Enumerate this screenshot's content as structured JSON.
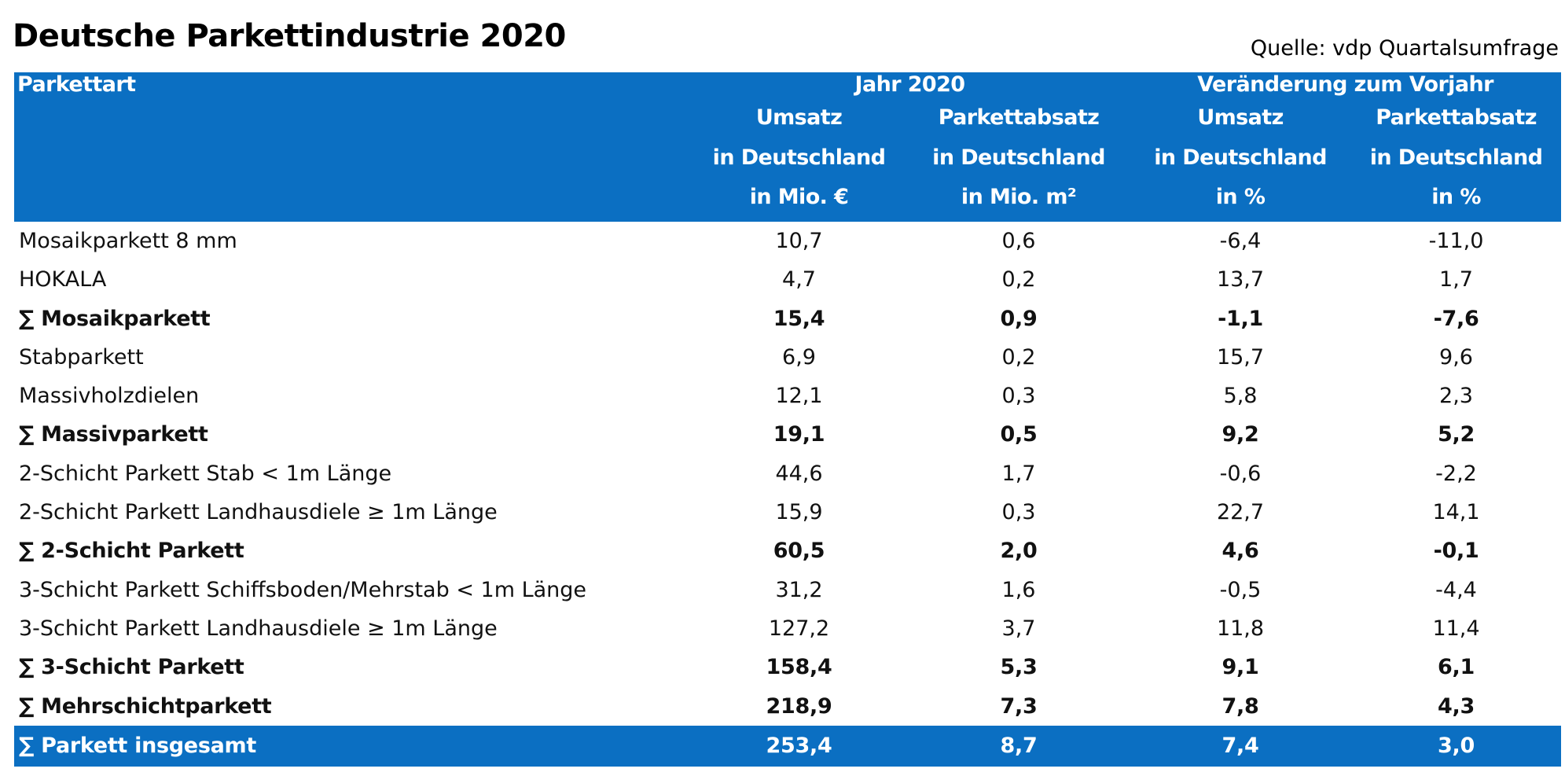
{
  "title": "Deutsche Parkettindustrie 2020",
  "source": "Quelle: vdp Quartalsumfrage",
  "colors": {
    "header_bg": "#0b6fc2",
    "header_text": "#ffffff",
    "body_text": "#111111"
  },
  "header": {
    "col0": "Parkettart",
    "group1": "Jahr 2020",
    "group2": "Veränderung zum Vorjahr",
    "columns": [
      {
        "line1": "Umsatz",
        "line2": "in Deutschland",
        "line3": "in Mio. €"
      },
      {
        "line1": "Parkettabsatz",
        "line2": "in Deutschland",
        "line3": "in Mio. m²"
      },
      {
        "line1": "Umsatz",
        "line2": "in Deutschland",
        "line3": "in %"
      },
      {
        "line1": "Parkettabsatz",
        "line2": "in Deutschland",
        "line3": "in %"
      }
    ]
  },
  "rows": [
    {
      "type": "item",
      "label": "Mosaikparkett 8 mm",
      "umsatz": "10,7",
      "absatz": "0,6",
      "umsatz_pct": "-6,4",
      "absatz_pct": "-11,0"
    },
    {
      "type": "item",
      "label": "HOKALA",
      "umsatz": "4,7",
      "absatz": "0,2",
      "umsatz_pct": "13,7",
      "absatz_pct": "1,7"
    },
    {
      "type": "subtotal",
      "label": "∑ Mosaikparkett",
      "umsatz": "15,4",
      "absatz": "0,9",
      "umsatz_pct": "-1,1",
      "absatz_pct": "-7,6"
    },
    {
      "type": "item",
      "label": "Stabparkett",
      "umsatz": "6,9",
      "absatz": "0,2",
      "umsatz_pct": "15,7",
      "absatz_pct": "9,6"
    },
    {
      "type": "item",
      "label": "Massivholzdielen",
      "umsatz": "12,1",
      "absatz": "0,3",
      "umsatz_pct": "5,8",
      "absatz_pct": "2,3"
    },
    {
      "type": "subtotal",
      "label": "∑ Massivparkett",
      "umsatz": "19,1",
      "absatz": "0,5",
      "umsatz_pct": "9,2",
      "absatz_pct": "5,2"
    },
    {
      "type": "item",
      "label": "2-Schicht Parkett  Stab < 1m Länge",
      "umsatz": "44,6",
      "absatz": "1,7",
      "umsatz_pct": "-0,6",
      "absatz_pct": "-2,2"
    },
    {
      "type": "item",
      "label": "2-Schicht Parkett Landhausdiele ≥ 1m Länge",
      "umsatz": "15,9",
      "absatz": "0,3",
      "umsatz_pct": "22,7",
      "absatz_pct": "14,1"
    },
    {
      "type": "subtotal",
      "label": "∑ 2-Schicht Parkett",
      "umsatz": "60,5",
      "absatz": "2,0",
      "umsatz_pct": "4,6",
      "absatz_pct": "-0,1"
    },
    {
      "type": "item",
      "label": "3-Schicht Parkett Schiffsboden/Mehrstab < 1m Länge",
      "umsatz": "31,2",
      "absatz": "1,6",
      "umsatz_pct": "-0,5",
      "absatz_pct": "-4,4"
    },
    {
      "type": "item",
      "label": "3-Schicht Parkett Landhausdiele ≥ 1m Länge",
      "umsatz": "127,2",
      "absatz": "3,7",
      "umsatz_pct": "11,8",
      "absatz_pct": "11,4"
    },
    {
      "type": "subtotal",
      "label": "∑ 3-Schicht Parkett",
      "umsatz": "158,4",
      "absatz": "5,3",
      "umsatz_pct": "9,1",
      "absatz_pct": "6,1"
    },
    {
      "type": "subtotal",
      "label": "∑ Mehrschichtparkett",
      "umsatz": "218,9",
      "absatz": "7,3",
      "umsatz_pct": "7,8",
      "absatz_pct": "4,3"
    },
    {
      "type": "total",
      "label": "∑ Parkett insgesamt",
      "umsatz": "253,4",
      "absatz": "8,7",
      "umsatz_pct": "7,4",
      "absatz_pct": "3,0"
    }
  ]
}
